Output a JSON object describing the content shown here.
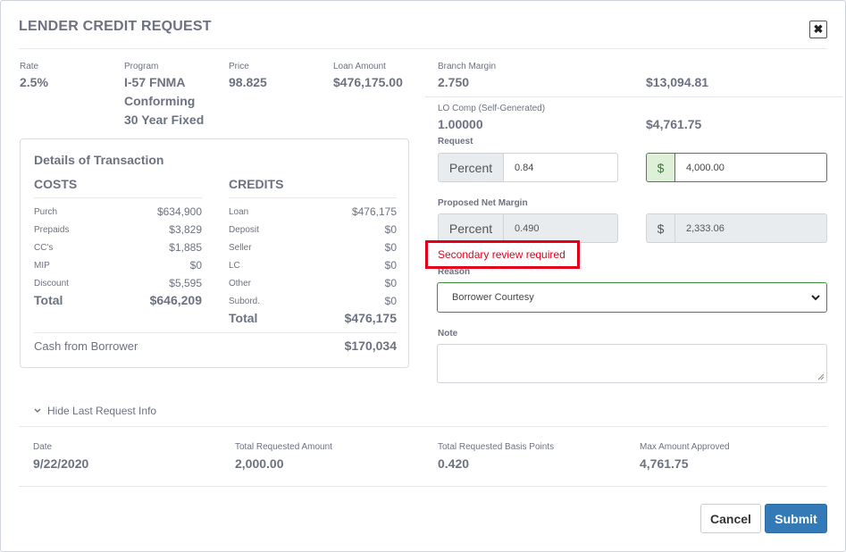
{
  "modal": {
    "title": "LENDER CREDIT REQUEST",
    "close_glyph": "✖"
  },
  "summary": {
    "rate": {
      "label": "Rate",
      "value": "2.5%"
    },
    "program": {
      "label": "Program",
      "lines": [
        "I-57 FNMA",
        "Conforming",
        "30 Year Fixed"
      ]
    },
    "price": {
      "label": "Price",
      "value": "98.825"
    },
    "loan_amount": {
      "label": "Loan Amount",
      "value": "$476,175.00"
    }
  },
  "branch_margin": {
    "label": "Branch Margin",
    "value": "2.750",
    "amount": "$13,094.81"
  },
  "lo_comp": {
    "label": "LO Comp (Self-Generated)",
    "value": "1.00000",
    "amount": "$4,761.75"
  },
  "request": {
    "label": "Request",
    "percent_addon": "Percent",
    "percent_value": "0.84",
    "dollar_addon": "$",
    "dollar_value": "4,000.00"
  },
  "proposed_net_margin": {
    "label": "Proposed Net Margin",
    "percent_addon": "Percent",
    "percent_value": "0.490",
    "dollar_addon": "$",
    "dollar_value": "2,333.06"
  },
  "alert": "Secondary review required",
  "reason": {
    "label": "Reason",
    "selected": "Borrower Courtesy"
  },
  "note": {
    "label": "Note",
    "value": ""
  },
  "details": {
    "title": "Details of Transaction",
    "costs": {
      "header": "COSTS",
      "rows": [
        {
          "label": "Purch",
          "value": "$634,900"
        },
        {
          "label": "Prepaids",
          "value": "$3,829"
        },
        {
          "label": "CC's",
          "value": "$1,885"
        },
        {
          "label": "MIP",
          "value": "$0"
        },
        {
          "label": "Discount",
          "value": "$5,595"
        }
      ],
      "total_label": "Total",
      "total_value": "$646,209"
    },
    "credits": {
      "header": "CREDITS",
      "rows": [
        {
          "label": "Loan",
          "value": "$476,175"
        },
        {
          "label": "Deposit",
          "value": "$0"
        },
        {
          "label": "Seller",
          "value": "$0"
        },
        {
          "label": "LC",
          "value": "$0"
        },
        {
          "label": "Other",
          "value": "$0"
        },
        {
          "label": "Subord.",
          "value": "$0"
        }
      ],
      "total_label": "Total",
      "total_value": "$476,175"
    },
    "cash_label": "Cash from Borrower",
    "cash_value": "$170,034"
  },
  "last_request": {
    "toggle_label": "Hide Last Request Info",
    "date": {
      "label": "Date",
      "value": "9/22/2020"
    },
    "total_amount": {
      "label": "Total Requested Amount",
      "value": "2,000.00"
    },
    "total_bps": {
      "label": "Total Requested Basis Points",
      "value": "0.420"
    },
    "max_approved": {
      "label": "Max Amount Approved",
      "value": "4,761.75"
    }
  },
  "buttons": {
    "cancel": "Cancel",
    "submit": "Submit"
  }
}
